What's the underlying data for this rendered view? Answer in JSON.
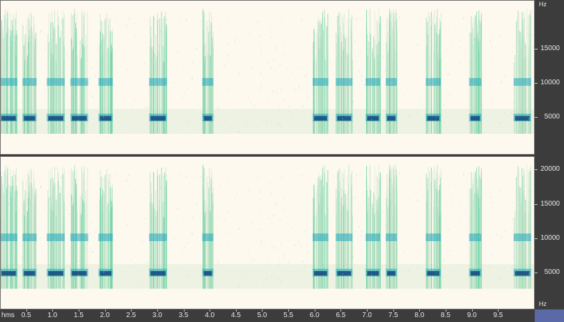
{
  "time_ruler": {
    "unit": "hms",
    "ticks": [
      "0.5",
      "1.0",
      "1.5",
      "2.0",
      "2.5",
      "3.0",
      "3.5",
      "4.0",
      "4.5",
      "5.0",
      "5.5",
      "6.0",
      "6.5",
      "7.0",
      "7.5",
      "8.0",
      "8.5",
      "9.0",
      "9.5"
    ],
    "max_seconds": 10.2
  },
  "channels": [
    {
      "id": "top",
      "unit": "Hz",
      "tick_labels": [
        "15000",
        "10000",
        "5000"
      ],
      "tick_values": [
        15000,
        10000,
        5000
      ],
      "max_hz": 20000
    },
    {
      "id": "bottom",
      "unit": "Hz",
      "tick_labels": [
        "20000",
        "15000",
        "10000",
        "5000"
      ],
      "tick_values": [
        20000,
        15000,
        10000,
        5000
      ],
      "max_hz": 22000
    }
  ],
  "spectrogram": {
    "background_color": "#fdf9ee",
    "low_color": "#bfe0c4",
    "mid_color": "#5ccf9f",
    "high_color": "#22a8c0",
    "peak_color": "#13467a",
    "calls_seconds": [
      0.15,
      0.55,
      1.05,
      1.5,
      2.0,
      3.0,
      3.95,
      6.1,
      6.55,
      7.1,
      7.45,
      8.25,
      9.05,
      9.95
    ]
  }
}
